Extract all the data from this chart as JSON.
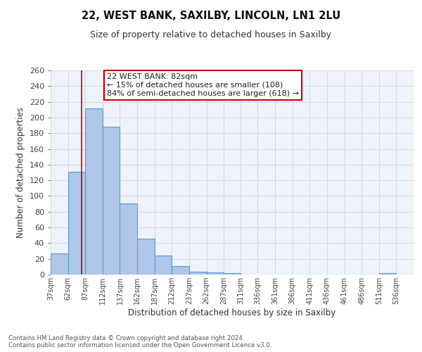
{
  "title_line1": "22, WEST BANK, SAXILBY, LINCOLN, LN1 2LU",
  "title_line2": "Size of property relative to detached houses in Saxilby",
  "xlabel": "Distribution of detached houses by size in Saxilby",
  "ylabel": "Number of detached properties",
  "bin_edges": [
    37,
    62,
    87,
    112,
    137,
    162,
    187,
    212,
    237,
    262,
    287,
    311,
    336,
    361,
    386,
    411,
    436,
    461,
    486,
    511,
    536,
    561
  ],
  "bin_labels": [
    "37sqm",
    "62sqm",
    "87sqm",
    "112sqm",
    "137sqm",
    "162sqm",
    "187sqm",
    "212sqm",
    "237sqm",
    "262sqm",
    "287sqm",
    "311sqm",
    "336sqm",
    "361sqm",
    "386sqm",
    "411sqm",
    "436sqm",
    "461sqm",
    "486sqm",
    "511sqm",
    "536sqm"
  ],
  "counts": [
    27,
    131,
    212,
    188,
    91,
    46,
    24,
    11,
    4,
    3,
    2,
    0,
    0,
    0,
    0,
    0,
    0,
    0,
    0,
    2,
    0
  ],
  "bar_color": "#aec6e8",
  "bar_edge_color": "#5b9bd5",
  "grid_color": "#d0d8e8",
  "background_color": "#eef2fa",
  "vline_x": 82,
  "vline_color": "#cc0000",
  "ylim": [
    0,
    260
  ],
  "yticks": [
    0,
    20,
    40,
    60,
    80,
    100,
    120,
    140,
    160,
    180,
    200,
    220,
    240,
    260
  ],
  "annotation_title": "22 WEST BANK: 82sqm",
  "annotation_line1": "← 15% of detached houses are smaller (108)",
  "annotation_line2": "84% of semi-detached houses are larger (618) →",
  "footer_line1": "Contains HM Land Registry data © Crown copyright and database right 2024.",
  "footer_line2": "Contains public sector information licensed under the Open Government Licence v3.0."
}
